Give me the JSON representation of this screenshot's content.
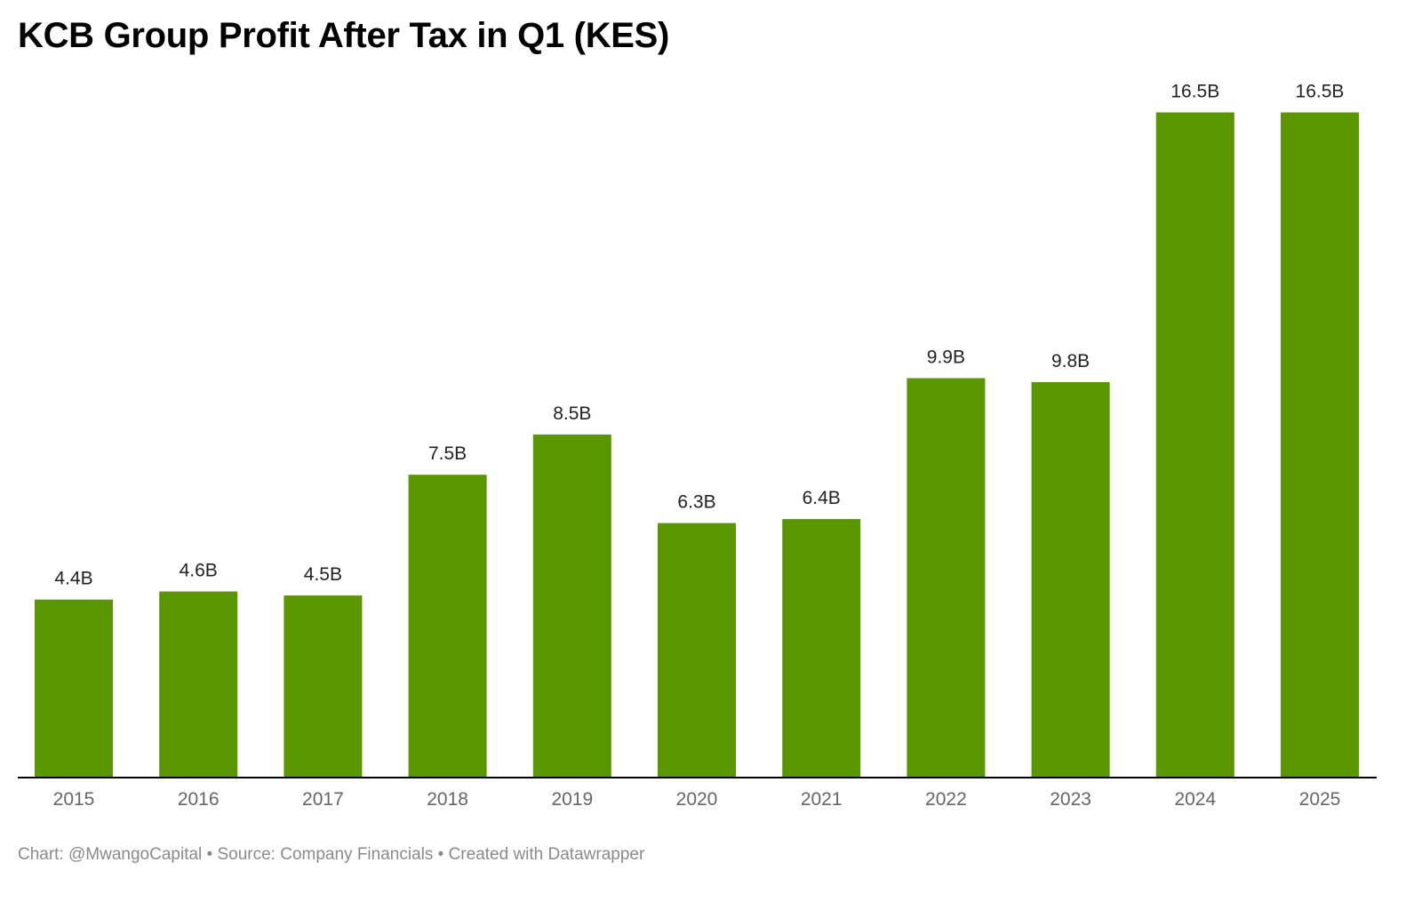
{
  "title": "KCB Group Profit After Tax in Q1 (KES)",
  "footer": {
    "text": "Chart: @MwangoCapital • Source: Company Financials • Created with Datawrapper"
  },
  "colors": {
    "bar": "#5a9600",
    "axis": "#000000"
  },
  "chart_data": {
    "type": "bar",
    "title": "KCB Group Profit After Tax in Q1 (KES)",
    "xlabel": "",
    "ylabel": "",
    "categories": [
      "2015",
      "2016",
      "2017",
      "2018",
      "2019",
      "2020",
      "2021",
      "2022",
      "2023",
      "2024",
      "2025"
    ],
    "values": [
      4.4,
      4.6,
      4.5,
      7.5,
      8.5,
      6.3,
      6.4,
      9.9,
      9.8,
      16.5,
      16.5
    ],
    "labels": [
      "4.4B",
      "4.6B",
      "4.5B",
      "7.5B",
      "8.5B",
      "6.3B",
      "6.4B",
      "9.9B",
      "9.8B",
      "16.5B",
      "16.5B"
    ],
    "ylim": [
      0,
      16.6
    ],
    "grid": false,
    "legend": "none"
  }
}
